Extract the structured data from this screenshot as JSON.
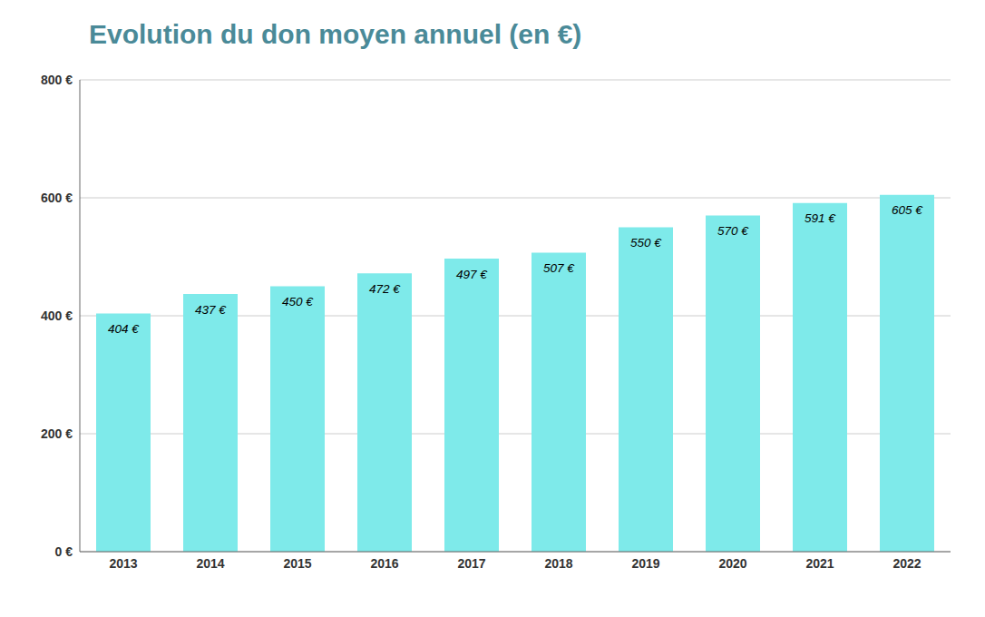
{
  "chart_data": {
    "type": "bar",
    "title": "Evolution du don moyen annuel (en €)",
    "categories": [
      "2013",
      "2014",
      "2015",
      "2016",
      "2017",
      "2018",
      "2019",
      "2020",
      "2021",
      "2022"
    ],
    "values": [
      404,
      437,
      450,
      472,
      497,
      507,
      550,
      570,
      591,
      605
    ],
    "value_labels": [
      "404 €",
      "437 €",
      "450 €",
      "472 €",
      "497 €",
      "507 €",
      "550 €",
      "570 €",
      "591 €",
      "605 €"
    ],
    "data_labels": true,
    "color": "#7eeaea",
    "ylim": [
      0,
      800
    ],
    "yticks": [
      {
        "value": 0,
        "label": "0 €"
      },
      {
        "value": 200,
        "label": "200 €"
      },
      {
        "value": 400,
        "label": "400 €"
      },
      {
        "value": 600,
        "label": "600 €"
      },
      {
        "value": 800,
        "label": "800 €"
      }
    ],
    "grid": true
  }
}
